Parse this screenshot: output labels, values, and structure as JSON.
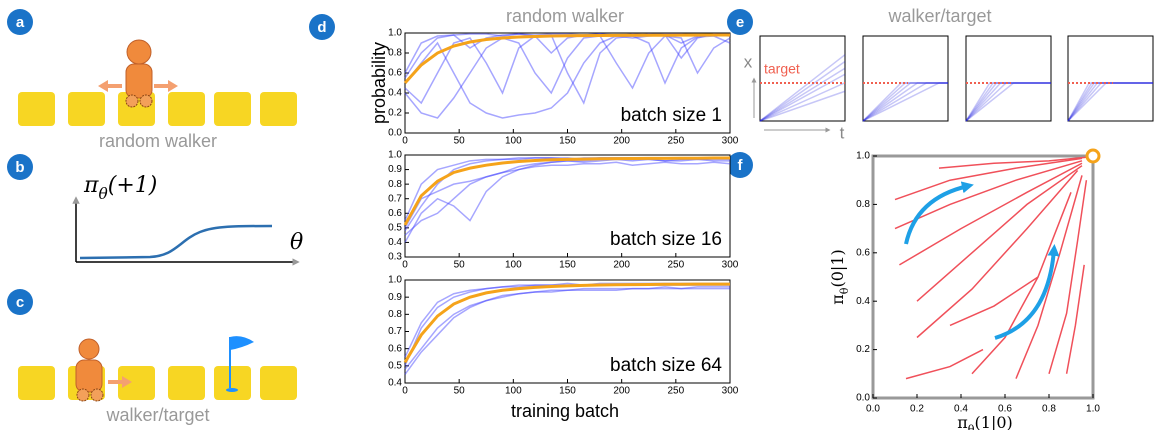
{
  "panels": {
    "a": {
      "label": "a",
      "caption": "random walker"
    },
    "b": {
      "label": "b",
      "y_label": {
        "symbol": "π",
        "sub": "θ",
        "arg": "(+1)"
      },
      "x_label": "θ"
    },
    "c": {
      "label": "c",
      "caption": "walker/target"
    },
    "d": {
      "label": "d"
    },
    "e": {
      "label": "e",
      "title": "walker/target",
      "target_label": "target",
      "x_label": "x",
      "t_label": "t"
    },
    "f": {
      "label": "f"
    }
  },
  "chart_data": [
    {
      "type": "line",
      "title": "random walker",
      "y_label": "probability",
      "annotation": "batch size 1",
      "xlim": [
        0,
        300
      ],
      "xticks": [
        0,
        50,
        100,
        150,
        200,
        250,
        300
      ],
      "ylim": [
        0,
        1
      ],
      "yticks": [
        {
          "value": 0,
          "label": "0.0"
        },
        {
          "value": 0.2,
          "label": "0.2"
        },
        {
          "value": 0.4,
          "label": "0.4"
        },
        {
          "value": 0.6,
          "label": "0.6"
        },
        {
          "value": 0.8,
          "label": "0.8"
        },
        {
          "value": 1,
          "label": "1.0"
        }
      ],
      "x": [
        0,
        15,
        30,
        45,
        60,
        75,
        90,
        105,
        120,
        135,
        150,
        165,
        180,
        195,
        210,
        225,
        240,
        255,
        270,
        285,
        300
      ],
      "series": [
        {
          "color": "#3a3aff",
          "values": [
            0.45,
            0.3,
            0.6,
            0.9,
            0.95,
            0.7,
            0.4,
            0.85,
            0.97,
            0.98,
            0.6,
            0.3,
            0.8,
            0.95,
            0.97,
            0.9,
            0.5,
            0.85,
            0.96,
            0.97,
            0.9
          ]
        },
        {
          "color": "#3a3aff",
          "values": [
            0.55,
            0.8,
            0.95,
            0.98,
            0.99,
            0.99,
            0.97,
            0.99,
            0.98,
            0.99,
            0.99,
            0.98,
            0.99,
            0.97,
            0.99,
            0.98,
            0.99,
            0.99,
            0.98,
            0.99,
            0.99
          ]
        },
        {
          "color": "#3a3aff",
          "values": [
            0.4,
            0.2,
            0.15,
            0.35,
            0.6,
            0.85,
            0.95,
            0.9,
            0.6,
            0.4,
            0.75,
            0.95,
            0.97,
            0.7,
            0.45,
            0.8,
            0.97,
            0.95,
            0.6,
            0.85,
            0.95
          ]
        },
        {
          "color": "#3a3aff",
          "values": [
            0.5,
            0.7,
            0.9,
            0.6,
            0.3,
            0.2,
            0.15,
            0.18,
            0.2,
            0.25,
            0.4,
            0.7,
            0.9,
            0.97,
            0.95,
            0.97,
            0.98,
            0.9,
            0.97,
            0.98,
            0.97
          ]
        },
        {
          "color": "#3a3aff",
          "values": [
            0.6,
            0.9,
            0.97,
            0.98,
            0.85,
            0.95,
            0.98,
            0.99,
            0.97,
            0.8,
            0.95,
            0.98,
            0.99,
            0.98,
            0.97,
            0.99,
            0.98,
            0.75,
            0.95,
            0.99,
            0.98
          ]
        },
        {
          "color": "#f5a31a",
          "values": [
            0.5,
            0.68,
            0.8,
            0.87,
            0.91,
            0.935,
            0.95,
            0.96,
            0.965,
            0.97,
            0.972,
            0.974,
            0.975,
            0.976,
            0.977,
            0.978,
            0.978,
            0.979,
            0.979,
            0.98,
            0.98
          ]
        }
      ]
    },
    {
      "type": "line",
      "annotation": "batch size 16",
      "xlim": [
        0,
        300
      ],
      "xticks": [
        0,
        50,
        100,
        150,
        200,
        250,
        300
      ],
      "ylim": [
        0.3,
        1
      ],
      "yticks": [
        0.3,
        0.4,
        0.5,
        0.6,
        0.7,
        0.8,
        0.9,
        {
          "value": 1,
          "label": "1.0"
        }
      ],
      "x": [
        0,
        15,
        30,
        45,
        60,
        75,
        90,
        105,
        120,
        135,
        150,
        165,
        180,
        195,
        210,
        225,
        240,
        255,
        270,
        285,
        300
      ],
      "series": [
        {
          "color": "#3a3aff",
          "values": [
            0.48,
            0.65,
            0.8,
            0.9,
            0.94,
            0.96,
            0.97,
            0.97,
            0.98,
            0.98,
            0.98,
            0.97,
            0.98,
            0.98,
            0.98,
            0.98,
            0.98,
            0.98,
            0.98,
            0.98,
            0.98
          ]
        },
        {
          "color": "#3a3aff",
          "values": [
            0.45,
            0.55,
            0.6,
            0.7,
            0.8,
            0.85,
            0.88,
            0.92,
            0.94,
            0.95,
            0.96,
            0.96,
            0.97,
            0.97,
            0.97,
            0.97,
            0.96,
            0.97,
            0.97,
            0.97,
            0.97
          ]
        },
        {
          "color": "#3a3aff",
          "values": [
            0.4,
            0.6,
            0.7,
            0.65,
            0.55,
            0.75,
            0.85,
            0.9,
            0.93,
            0.95,
            0.96,
            0.95,
            0.96,
            0.97,
            0.96,
            0.97,
            0.96,
            0.96,
            0.97,
            0.96,
            0.96
          ]
        },
        {
          "color": "#3a3aff",
          "values": [
            0.55,
            0.8,
            0.9,
            0.93,
            0.96,
            0.97,
            0.97,
            0.98,
            0.98,
            0.98,
            0.97,
            0.98,
            0.98,
            0.98,
            0.98,
            0.98,
            0.98,
            0.97,
            0.98,
            0.98,
            0.98
          ]
        },
        {
          "color": "#3a3aff",
          "values": [
            0.5,
            0.7,
            0.75,
            0.8,
            0.82,
            0.85,
            0.88,
            0.9,
            0.92,
            0.93,
            0.93,
            0.94,
            0.94,
            0.95,
            0.93,
            0.94,
            0.95,
            0.94,
            0.94,
            0.95,
            0.94
          ]
        },
        {
          "color": "#f5a31a",
          "values": [
            0.52,
            0.72,
            0.82,
            0.88,
            0.91,
            0.93,
            0.945,
            0.955,
            0.962,
            0.967,
            0.97,
            0.972,
            0.974,
            0.975,
            0.976,
            0.977,
            0.977,
            0.978,
            0.978,
            0.979,
            0.979
          ]
        }
      ]
    },
    {
      "type": "line",
      "annotation": "batch size 64",
      "x_label": "training batch",
      "xlim": [
        0,
        300
      ],
      "xticks": [
        0,
        50,
        100,
        150,
        200,
        250,
        300
      ],
      "ylim": [
        0.4,
        1
      ],
      "yticks": [
        0.4,
        0.5,
        0.6,
        0.7,
        0.8,
        0.9,
        {
          "value": 1,
          "label": "1.0"
        }
      ],
      "x": [
        0,
        15,
        30,
        45,
        60,
        75,
        90,
        105,
        120,
        135,
        150,
        165,
        180,
        195,
        210,
        225,
        240,
        255,
        270,
        285,
        300
      ],
      "series": [
        {
          "color": "#3a3aff",
          "values": [
            0.5,
            0.72,
            0.84,
            0.9,
            0.93,
            0.95,
            0.96,
            0.96,
            0.97,
            0.97,
            0.97,
            0.97,
            0.97,
            0.97,
            0.97,
            0.97,
            0.97,
            0.97,
            0.97,
            0.97,
            0.97
          ]
        },
        {
          "color": "#3a3aff",
          "values": [
            0.48,
            0.6,
            0.72,
            0.8,
            0.85,
            0.88,
            0.91,
            0.92,
            0.93,
            0.94,
            0.94,
            0.95,
            0.95,
            0.95,
            0.95,
            0.95,
            0.96,
            0.95,
            0.96,
            0.96,
            0.96
          ]
        },
        {
          "color": "#3a3aff",
          "values": [
            0.55,
            0.75,
            0.87,
            0.92,
            0.94,
            0.95,
            0.96,
            0.97,
            0.97,
            0.97,
            0.98,
            0.97,
            0.98,
            0.98,
            0.98,
            0.98,
            0.98,
            0.98,
            0.98,
            0.98,
            0.98
          ]
        },
        {
          "color": "#3a3aff",
          "values": [
            0.45,
            0.58,
            0.68,
            0.78,
            0.84,
            0.88,
            0.9,
            0.92,
            0.93,
            0.93,
            0.94,
            0.94,
            0.94,
            0.94,
            0.95,
            0.95,
            0.95,
            0.95,
            0.95,
            0.95,
            0.95
          ]
        },
        {
          "color": "#f5a31a",
          "values": [
            0.52,
            0.68,
            0.79,
            0.86,
            0.9,
            0.925,
            0.94,
            0.95,
            0.957,
            0.962,
            0.966,
            0.969,
            0.971,
            0.972,
            0.973,
            0.974,
            0.975,
            0.975,
            0.976,
            0.976,
            0.976
          ]
        }
      ]
    },
    {
      "type": "line",
      "color": "#f0505a",
      "x_label": {
        "symbol": "π",
        "sub": "θ",
        "arg": "(1|0)"
      },
      "y_label": {
        "symbol": "π",
        "sub": "θ",
        "arg": "(0|1)"
      },
      "xlim": [
        0,
        1
      ],
      "xticks": [
        {
          "value": 0,
          "label": "0.0"
        },
        {
          "value": 0.2,
          "label": "0.2"
        },
        {
          "value": 0.4,
          "label": "0.4"
        },
        {
          "value": 0.6,
          "label": "0.6"
        },
        {
          "value": 0.8,
          "label": "0.8"
        },
        {
          "value": 1,
          "label": "1.0"
        }
      ],
      "ylim": [
        0,
        1
      ],
      "yticks": [
        {
          "value": 0,
          "label": "0.0"
        },
        {
          "value": 0.2,
          "label": "0.2"
        },
        {
          "value": 0.4,
          "label": "0.4"
        },
        {
          "value": 0.6,
          "label": "0.6"
        },
        {
          "value": 0.8,
          "label": "0.8"
        },
        {
          "value": 1,
          "label": "1.0"
        }
      ],
      "point": {
        "x": 1,
        "y": 1,
        "color": "#f5a31a"
      },
      "series": [
        {
          "x": [
            0.1,
            0.35,
            0.65,
            0.95
          ],
          "values": [
            0.82,
            0.9,
            0.95,
            0.99
          ]
        },
        {
          "x": [
            0.1,
            0.35,
            0.65,
            0.95
          ],
          "values": [
            0.7,
            0.8,
            0.9,
            0.98
          ]
        },
        {
          "x": [
            0.12,
            0.4,
            0.7,
            0.95
          ],
          "values": [
            0.55,
            0.7,
            0.85,
            0.97
          ]
        },
        {
          "x": [
            0.2,
            0.45,
            0.7,
            0.95
          ],
          "values": [
            0.4,
            0.6,
            0.8,
            0.96
          ]
        },
        {
          "x": [
            0.2,
            0.45,
            0.7,
            0.93
          ],
          "values": [
            0.25,
            0.45,
            0.7,
            0.94
          ]
        },
        {
          "x": [
            0.15,
            0.35,
            0.5
          ],
          "values": [
            0.08,
            0.13,
            0.2
          ]
        },
        {
          "x": [
            0.45,
            0.6,
            0.75,
            0.9
          ],
          "values": [
            0.1,
            0.25,
            0.5,
            0.85
          ]
        },
        {
          "x": [
            0.65,
            0.75,
            0.85,
            0.95
          ],
          "values": [
            0.08,
            0.3,
            0.6,
            0.92
          ]
        },
        {
          "x": [
            0.8,
            0.88,
            0.93,
            0.97
          ],
          "values": [
            0.1,
            0.35,
            0.65,
            0.9
          ]
        },
        {
          "x": [
            0.3,
            0.55,
            0.8,
            0.97
          ],
          "values": [
            0.95,
            0.97,
            0.98,
            0.995
          ]
        },
        {
          "x": [
            0.35,
            0.55,
            0.75
          ],
          "values": [
            0.3,
            0.38,
            0.5
          ]
        },
        {
          "x": [
            0.88,
            0.92,
            0.96
          ],
          "values": [
            0.1,
            0.3,
            0.55
          ]
        }
      ]
    }
  ]
}
